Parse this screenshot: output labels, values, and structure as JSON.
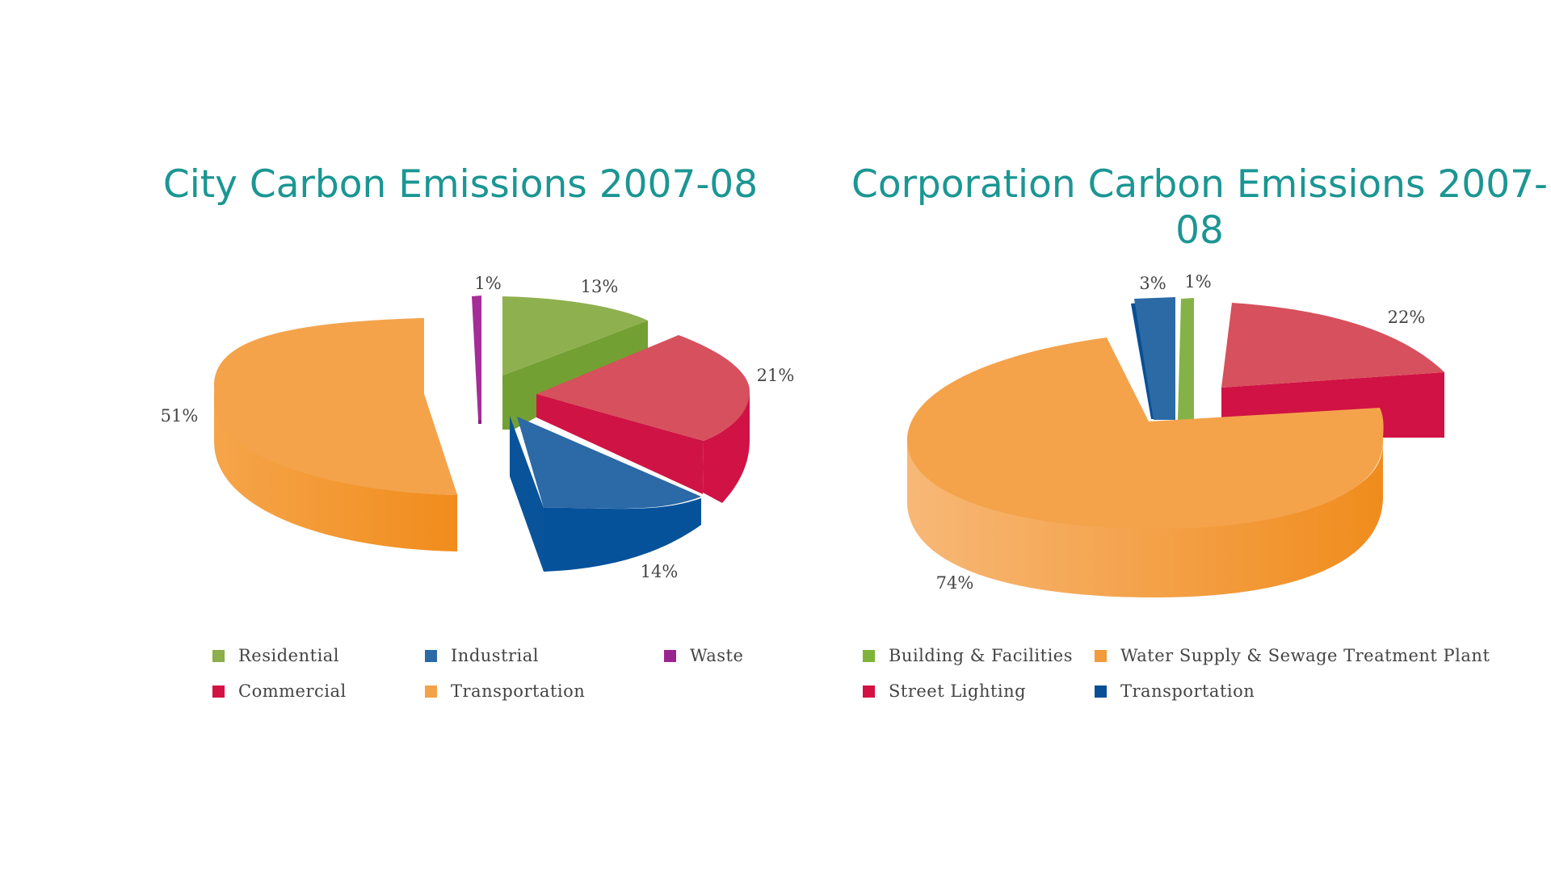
{
  "chart_data": [
    {
      "type": "pie",
      "title": "City Carbon Emissions 2007-08",
      "slices": [
        {
          "label": "Waste",
          "value": 1,
          "value_label": "1%",
          "color": "#9b2590"
        },
        {
          "label": "Residential",
          "value": 13,
          "value_label": "13%",
          "color": "#8cae4b"
        },
        {
          "label": "Commercial",
          "value": 21,
          "value_label": "21%",
          "color": "#d64e5b"
        },
        {
          "label": "Industrial",
          "value": 14,
          "value_label": "14%",
          "color": "#2c6aa6"
        },
        {
          "label": "Transportation",
          "value": 51,
          "value_label": "51%",
          "color": "#f3a249"
        }
      ],
      "legend": [
        {
          "label": "Residential",
          "color": "#8cae4b"
        },
        {
          "label": "Industrial",
          "color": "#2c6aa6"
        },
        {
          "label": "Waste",
          "color": "#9b2590"
        },
        {
          "label": "Commercial",
          "color": "#d31143"
        },
        {
          "label": "Transportation",
          "color": "#f3a249"
        }
      ],
      "legend_position": "bottom",
      "style": "3d-exploded"
    },
    {
      "type": "pie",
      "title": "Corporation Carbon Emissions 2007-08",
      "slices": [
        {
          "label": "Transportation",
          "value": 3,
          "value_label": "3%",
          "color": "#2c6aa6"
        },
        {
          "label": "Building & Facilities",
          "value": 1,
          "value_label": "1%",
          "color": "#7fb339"
        },
        {
          "label": "Street Lighting",
          "value": 22,
          "value_label": "22%",
          "color": "#d64e5b"
        },
        {
          "label": "Water Supply & Sewage Treatment Plant",
          "value": 74,
          "value_label": "74%",
          "color": "#f3a249"
        }
      ],
      "legend": [
        {
          "label": "Building & Facilities",
          "color": "#7fb339"
        },
        {
          "label": "Water Supply & Sewage Treatment Plant",
          "color": "#f39a3a"
        },
        {
          "label": "Street Lighting",
          "color": "#d31143"
        },
        {
          "label": "Transportation",
          "color": "#094f96"
        }
      ],
      "legend_position": "bottom",
      "style": "3d-exploded"
    }
  ]
}
